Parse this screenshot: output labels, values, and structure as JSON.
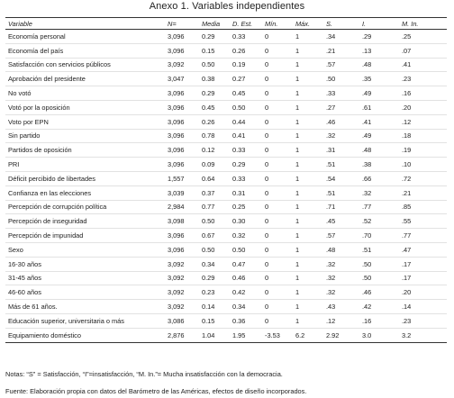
{
  "title": "Anexo 1. Variables independientes",
  "columns": [
    "Variable",
    "N=",
    "Media",
    "D. Est.",
    "Mín.",
    "Máx.",
    "S.",
    "I.",
    "M. In."
  ],
  "rows": [
    [
      "Economía personal",
      "3,096",
      "0.29",
      "0.33",
      "0",
      "1",
      ".34",
      ".29",
      ".25"
    ],
    [
      "Economía del país",
      "3,096",
      "0.15",
      "0.26",
      "0",
      "1",
      ".21",
      ".13",
      ".07"
    ],
    [
      "Satisfacción con servicios públicos",
      "3,092",
      "0.50",
      "0.19",
      "0",
      "1",
      ".57",
      ".48",
      ".41"
    ],
    [
      "Aprobación del presidente",
      "3,047",
      "0.38",
      "0.27",
      "0",
      "1",
      ".50",
      ".35",
      ".23"
    ],
    [
      "No votó",
      "3,096",
      "0.29",
      "0.45",
      "0",
      "1",
      ".33",
      ".49",
      ".16"
    ],
    [
      "Votó por la oposición",
      "3,096",
      "0.45",
      "0.50",
      "0",
      "1",
      ".27",
      ".61",
      ".20"
    ],
    [
      "Voto por EPN",
      "3,096",
      "0.26",
      "0.44",
      "0",
      "1",
      ".46",
      ".41",
      ".12"
    ],
    [
      "Sin partido",
      "3,096",
      "0.78",
      "0.41",
      "0",
      "1",
      ".32",
      ".49",
      ".18"
    ],
    [
      "Partidos de oposición",
      "3,096",
      "0.12",
      "0.33",
      "0",
      "1",
      ".31",
      ".48",
      ".19"
    ],
    [
      "PRI",
      "3,096",
      "0.09",
      "0.29",
      "0",
      "1",
      ".51",
      ".38",
      ".10"
    ],
    [
      "Déficit percibido de libertades",
      "1,557",
      "0.64",
      "0.33",
      "0",
      "1",
      ".54",
      ".66",
      ".72"
    ],
    [
      "Confianza en las elecciones",
      "3,039",
      "0.37",
      "0.31",
      "0",
      "1",
      ".51",
      ".32",
      ".21"
    ],
    [
      "Percepción de corrupción política",
      "2,984",
      "0.77",
      "0.25",
      "0",
      "1",
      ".71",
      ".77",
      ".85"
    ],
    [
      "Percepción de inseguridad",
      "3,098",
      "0.50",
      "0.30",
      "0",
      "1",
      ".45",
      ".52",
      ".55"
    ],
    [
      "Percepción de impunidad",
      "3,096",
      "0.67",
      "0.32",
      "0",
      "1",
      ".57",
      ".70",
      ".77"
    ],
    [
      "Sexo",
      "3,096",
      "0.50",
      "0.50",
      "0",
      "1",
      ".48",
      ".51",
      ".47"
    ],
    [
      "16-30 años",
      "3,092",
      "0.34",
      "0.47",
      "0",
      "1",
      ".32",
      ".50",
      ".17"
    ],
    [
      "31-45 años",
      "3,092",
      "0.29",
      "0.46",
      "0",
      "1",
      ".32",
      ".50",
      ".17"
    ],
    [
      "46-60 años",
      "3,092",
      "0.23",
      "0.42",
      "0",
      "1",
      ".32",
      ".46",
      ".20"
    ],
    [
      "Más de 61 años.",
      "3,092",
      "0.14",
      "0.34",
      "0",
      "1",
      ".43",
      ".42",
      ".14"
    ],
    [
      "Educación superior, universitaria o más",
      "3,086",
      "0.15",
      "0.36",
      "0",
      "1",
      ".12",
      ".16",
      ".23"
    ],
    [
      "Equipamiento doméstico",
      "2,876",
      "1.04",
      "1.95",
      "-3.53",
      "6.2",
      "2.92",
      "3.0",
      "3.2"
    ]
  ],
  "notes": "Notas: “S” = Satisfacción, “I”=insatisfacción, “M. In.”= Mucha insatisfacción con la democracia.",
  "source": "Fuente: Elaboración propia con datos del Barómetro de las Américas, efectos de diseño incorporados."
}
